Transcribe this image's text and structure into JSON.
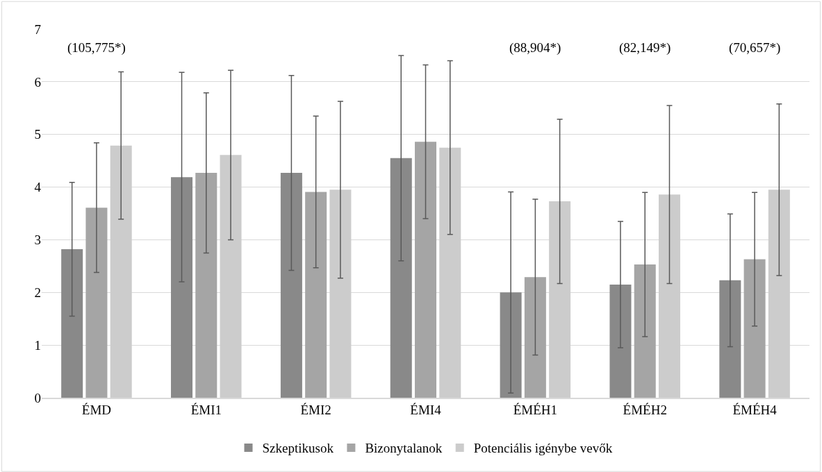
{
  "chart_data": {
    "type": "bar",
    "categories": [
      "ÉMD",
      "ÉMI1",
      "ÉMI2",
      "ÉMI4",
      "ÉMÉH1",
      "ÉMÉH2",
      "ÉMÉH4"
    ],
    "series": [
      {
        "name": "Szkeptikusok",
        "color": "#898989",
        "values": [
          2.82,
          4.19,
          4.27,
          4.55,
          2.0,
          2.15,
          2.23
        ],
        "errors": [
          1.27,
          1.99,
          1.85,
          1.95,
          1.91,
          1.2,
          1.26
        ]
      },
      {
        "name": "Bizonytalanok",
        "color": "#a5a5a5",
        "values": [
          3.61,
          4.27,
          3.91,
          4.86,
          2.29,
          2.53,
          2.63
        ],
        "errors": [
          1.23,
          1.52,
          1.44,
          1.46,
          1.48,
          1.37,
          1.27
        ]
      },
      {
        "name": "Potenciális igénybe vevők",
        "color": "#cccccc",
        "values": [
          4.79,
          4.61,
          3.95,
          4.75,
          3.73,
          3.86,
          3.95
        ],
        "errors": [
          1.4,
          1.61,
          1.68,
          1.65,
          1.56,
          1.69,
          1.63
        ]
      }
    ],
    "annotations": [
      "(105,775*)",
      "(88,904*)",
      "(82,149*)",
      "(70,657*)"
    ],
    "ylim": [
      0,
      7
    ],
    "yticks": [
      0,
      1,
      2,
      3,
      4,
      5,
      6,
      7
    ],
    "grid": "y",
    "legend": "bottom"
  }
}
